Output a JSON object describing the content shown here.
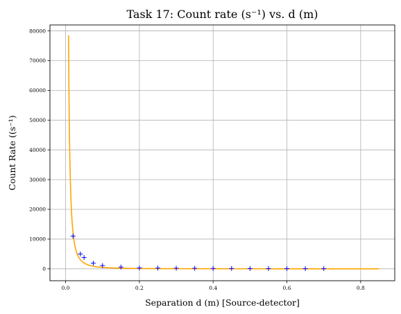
{
  "chart_data": {
    "type": "scatter",
    "title": "Task 17: Count rate (s⁻¹) vs. d (m)",
    "xlabel": "Separation d (m) [Source-detector]",
    "ylabel": "Count Rate ((s⁻¹)",
    "xlim": [
      -0.0425,
      0.8925
    ],
    "ylim": [
      -4000,
      82000
    ],
    "xticks": [
      0.0,
      0.2,
      0.4,
      0.6,
      0.8
    ],
    "xtick_labels": [
      "0.0",
      "0.2",
      "0.4",
      "0.6",
      "0.8"
    ],
    "yticks": [
      0,
      10000,
      20000,
      30000,
      40000,
      50000,
      60000,
      70000,
      80000
    ],
    "ytick_labels": [
      "0",
      "10000",
      "20000",
      "30000",
      "40000",
      "50000",
      "60000",
      "70000",
      "80000"
    ],
    "grid": true,
    "series": [
      {
        "kind": "scatter",
        "marker": "plus",
        "color": "#0000ff",
        "points": [
          [
            0.02,
            11000
          ],
          [
            0.04,
            5000
          ],
          [
            0.05,
            3800
          ],
          [
            0.075,
            1900
          ],
          [
            0.1,
            1100
          ],
          [
            0.15,
            600
          ],
          [
            0.2,
            300
          ],
          [
            0.25,
            250
          ],
          [
            0.3,
            200
          ],
          [
            0.35,
            180
          ],
          [
            0.4,
            130
          ],
          [
            0.45,
            120
          ],
          [
            0.5,
            100
          ],
          [
            0.55,
            90
          ],
          [
            0.6,
            80
          ],
          [
            0.65,
            70
          ],
          [
            0.7,
            60
          ]
        ]
      },
      {
        "kind": "line",
        "color": "#ffa500",
        "fit": "inverse-square",
        "fit_params": {
          "A": 4.9,
          "d0": 0.0
        },
        "x_range": [
          0.0079,
          0.85
        ]
      }
    ]
  }
}
